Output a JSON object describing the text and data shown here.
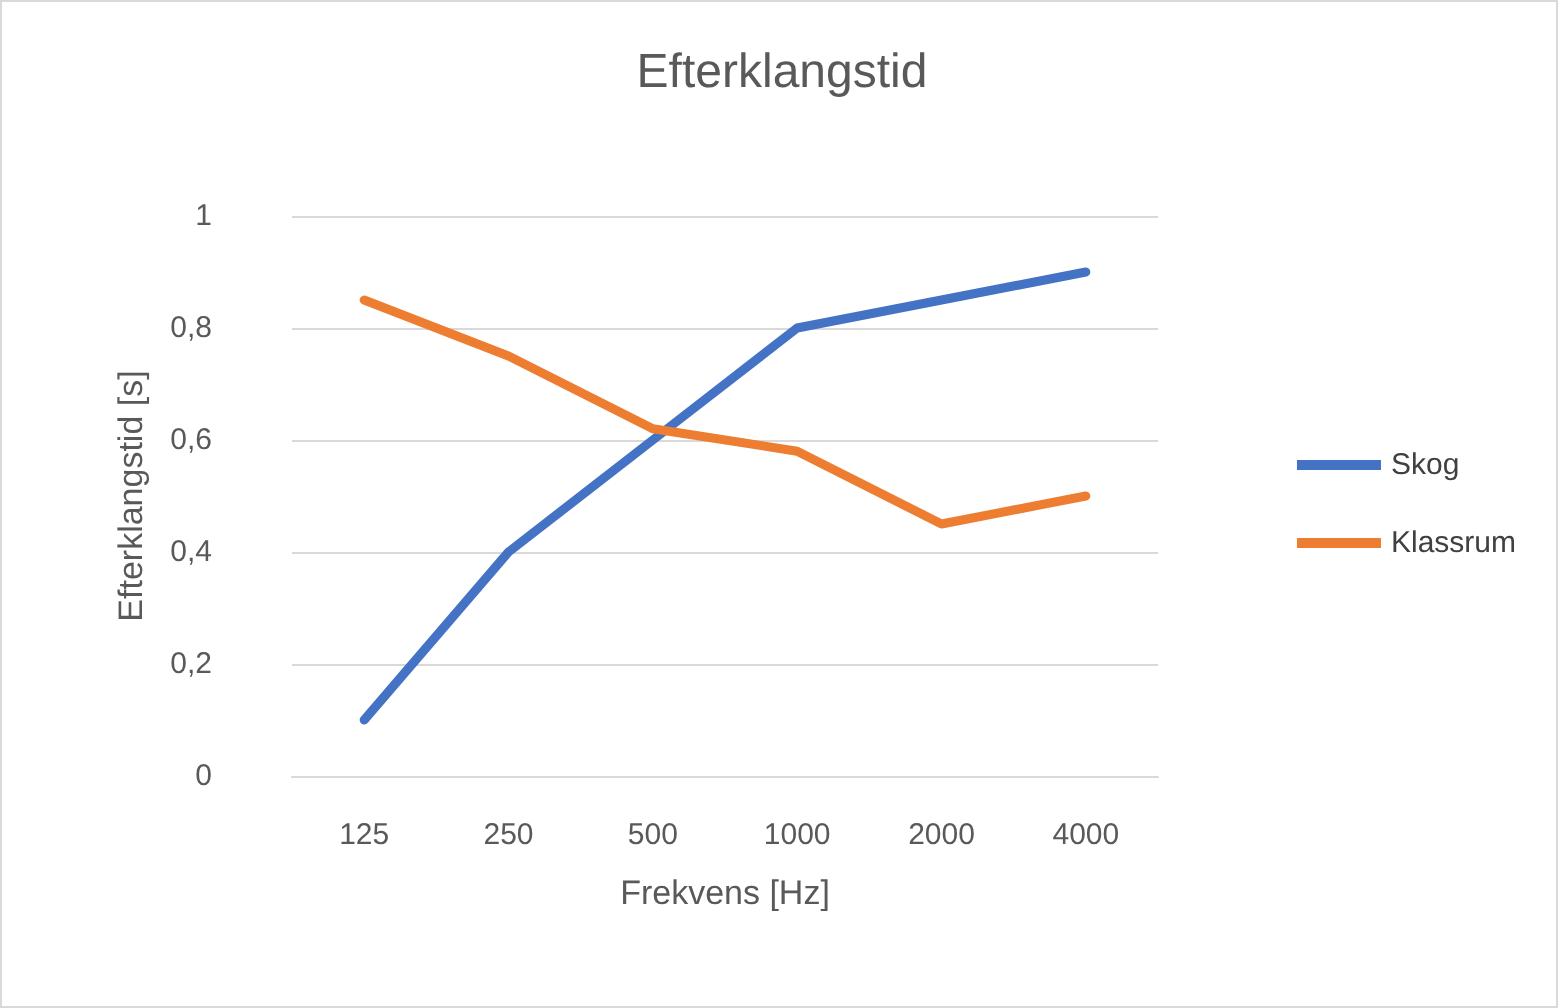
{
  "chart_data": {
    "type": "line",
    "title": "Efterklangstid",
    "xlabel": "Frekvens [Hz]",
    "ylabel": "Efterklangstid [s]",
    "categories": [
      "125",
      "250",
      "500",
      "1000",
      "2000",
      "4000"
    ],
    "series": [
      {
        "name": "Skog",
        "color": "#4472c4",
        "values": [
          0.1,
          0.4,
          0.6,
          0.8,
          0.85,
          0.9
        ]
      },
      {
        "name": "Klassrum",
        "color": "#ed7d31",
        "values": [
          0.85,
          0.75,
          0.62,
          0.58,
          0.45,
          0.5
        ]
      }
    ],
    "ylim": [
      0,
      1
    ],
    "yticks": [
      0,
      {
        "value": 0.2,
        "label": "0,2"
      },
      {
        "value": 0.4,
        "label": "0,4"
      },
      {
        "value": 0.6,
        "label": "0,6"
      },
      {
        "value": 0.8,
        "label": "0,8"
      },
      1
    ],
    "grid": "y",
    "legend": "right",
    "marker": "none",
    "line_style": "solid"
  }
}
